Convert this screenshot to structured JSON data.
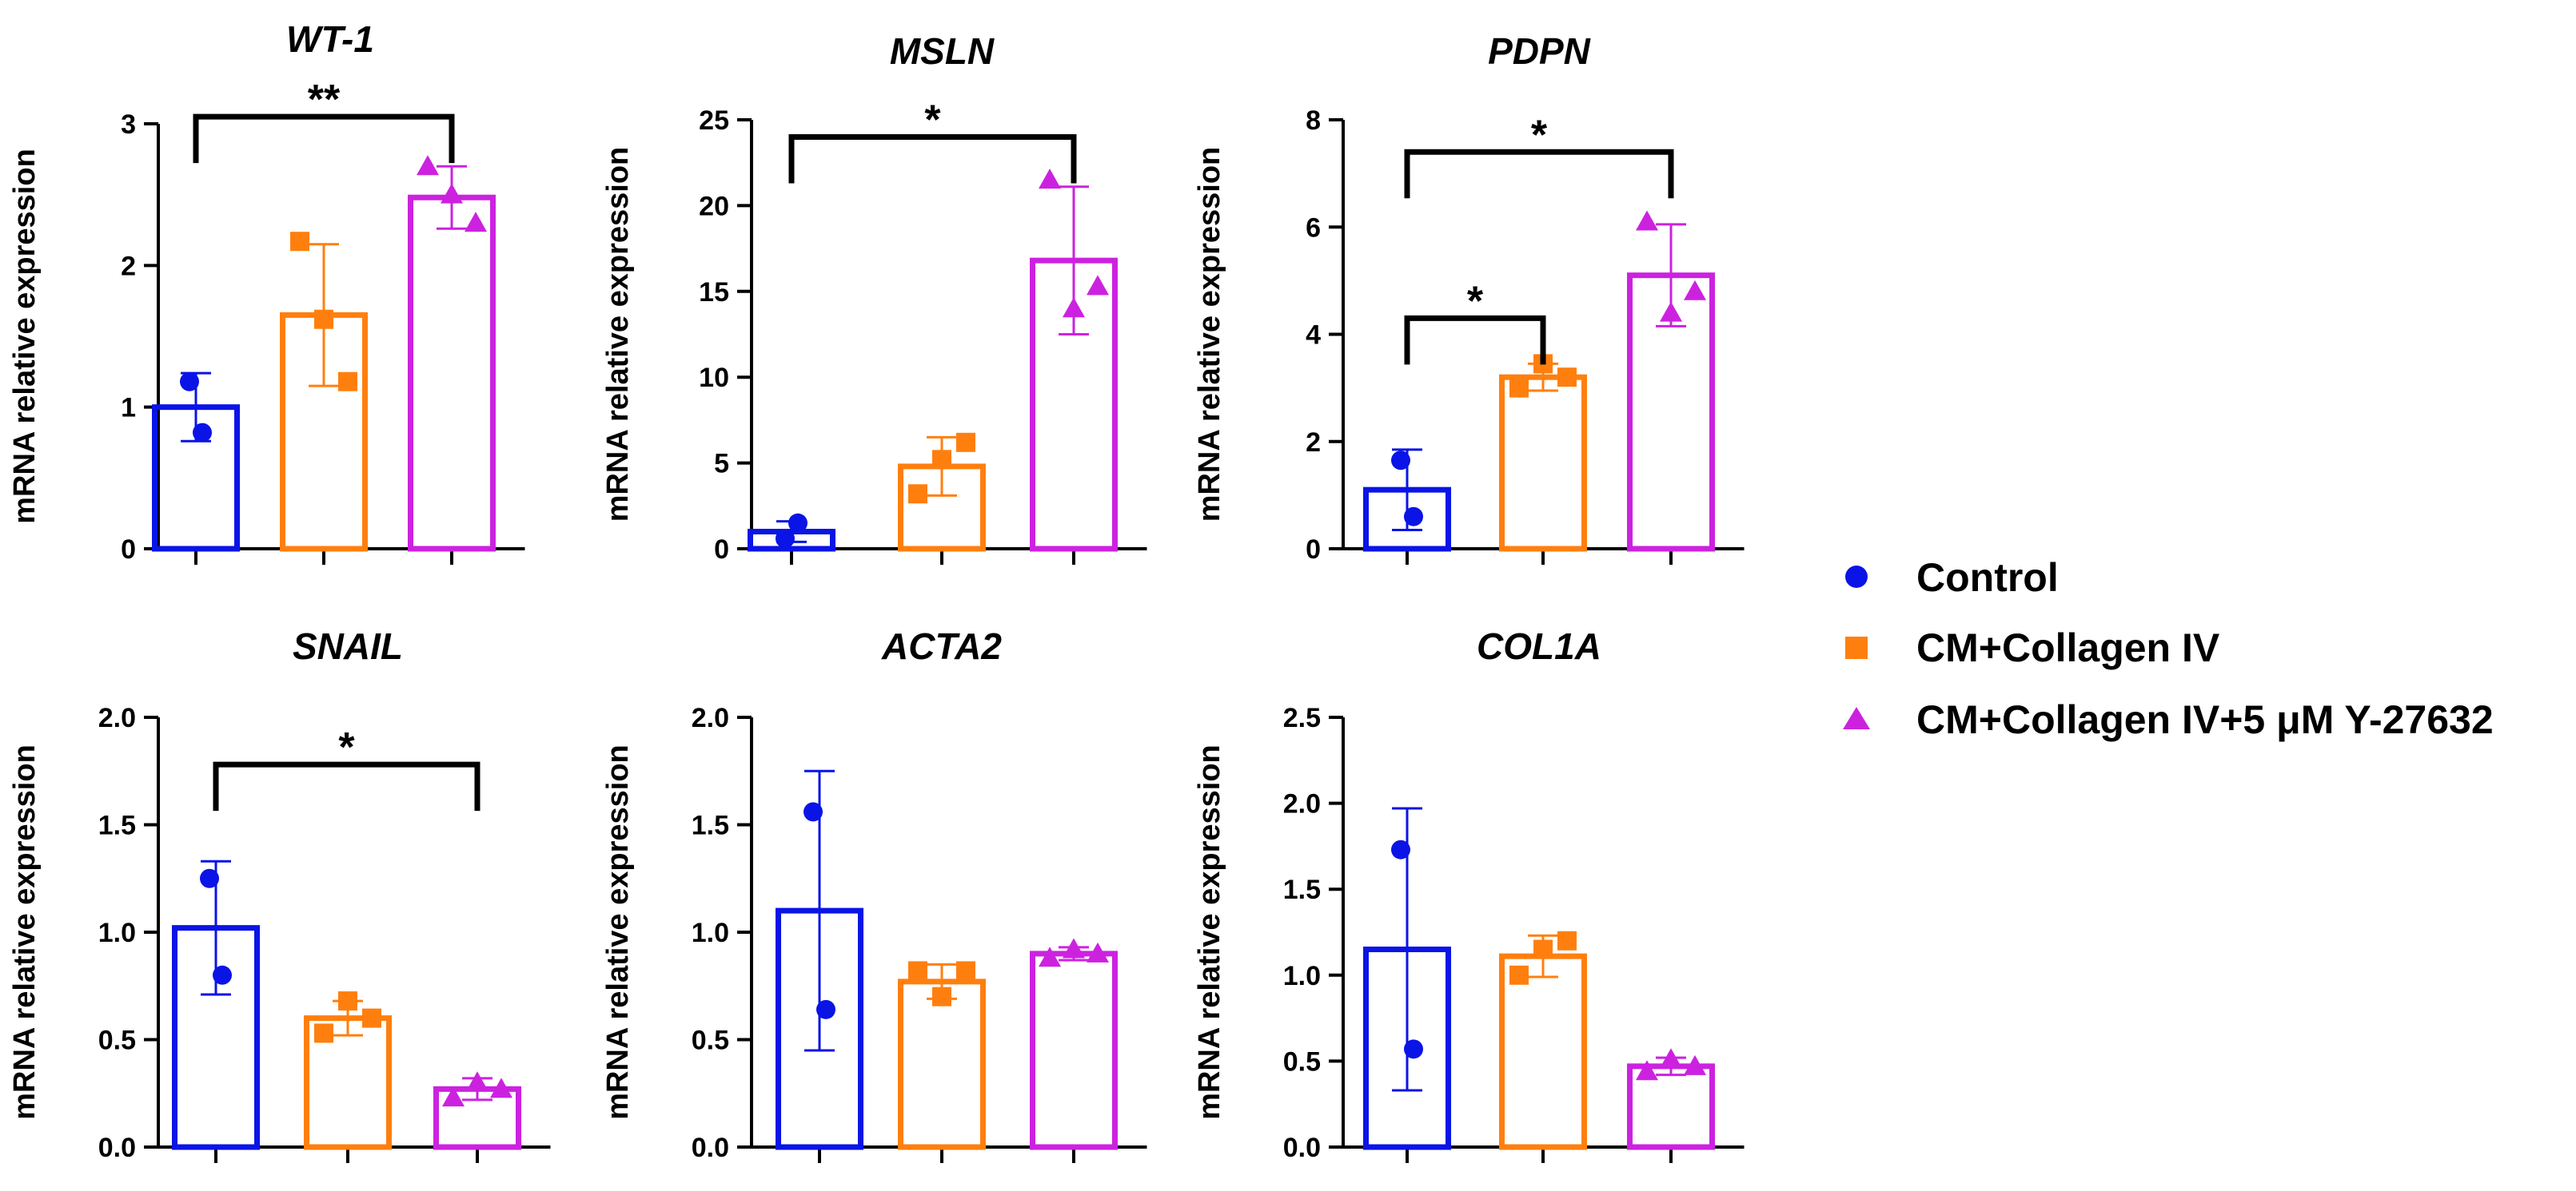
{
  "groups": [
    {
      "name": "Control",
      "color": "#0a14e6",
      "marker": "circle"
    },
    {
      "name": "CM+Collagen IV",
      "color": "#ff7f0e",
      "marker": "square"
    },
    {
      "name": "CM+Collagen IV+5 μM Y-27632",
      "color": "#cc22e0",
      "marker": "triangle"
    }
  ],
  "chart_data": [
    {
      "type": "bar",
      "title": "WT-1",
      "ylabel": "mRNA relative expression",
      "ylim": [
        0,
        3
      ],
      "yticks": [
        "0",
        "1",
        "2",
        "3"
      ],
      "ytick_values": [
        0,
        1,
        2,
        3
      ],
      "series": [
        {
          "name": "Control",
          "mean": 1.0,
          "sd": 0.24,
          "points": [
            1.18,
            0.82
          ]
        },
        {
          "name": "CM+Collagen IV",
          "mean": 1.65,
          "sd": 0.5,
          "points": [
            2.17,
            1.62,
            1.18
          ]
        },
        {
          "name": "CM+Collagen IV+5 μM Y-27632",
          "mean": 2.48,
          "sd": 0.22,
          "points": [
            2.7,
            2.5,
            2.3
          ]
        }
      ],
      "significance": [
        {
          "from": 0,
          "to": 2,
          "label": "**",
          "y": 3.05
        }
      ]
    },
    {
      "type": "bar",
      "title": "MSLN",
      "ylabel": "mRNA relative expression",
      "ylim": [
        0,
        25
      ],
      "yticks": [
        "0",
        "5",
        "10",
        "15",
        "20",
        "25"
      ],
      "ytick_values": [
        0,
        5,
        10,
        15,
        20,
        25
      ],
      "series": [
        {
          "name": "Control",
          "mean": 1.0,
          "sd": 0.6,
          "points": [
            0.6,
            1.5
          ]
        },
        {
          "name": "CM+Collagen IV",
          "mean": 4.8,
          "sd": 1.7,
          "points": [
            3.2,
            5.2,
            6.2
          ]
        },
        {
          "name": "CM+Collagen IV+5 μM Y-27632",
          "mean": 16.8,
          "sd": 4.3,
          "points": [
            21.5,
            14.0,
            15.3
          ]
        }
      ],
      "significance": [
        {
          "from": 0,
          "to": 2,
          "label": "*",
          "y": 24.0
        }
      ]
    },
    {
      "type": "bar",
      "title": "PDPN",
      "ylabel": "mRNA relative expression",
      "ylim": [
        0,
        8
      ],
      "yticks": [
        "0",
        "2",
        "4",
        "6",
        "8"
      ],
      "ytick_values": [
        0,
        2,
        4,
        6,
        8
      ],
      "series": [
        {
          "name": "Control",
          "mean": 1.1,
          "sd": 0.75,
          "points": [
            1.65,
            0.6
          ]
        },
        {
          "name": "CM+Collagen IV",
          "mean": 3.2,
          "sd": 0.25,
          "points": [
            3.0,
            3.45,
            3.2
          ]
        },
        {
          "name": "CM+Collagen IV+5 μM Y-27632",
          "mean": 5.1,
          "sd": 0.95,
          "points": [
            6.1,
            4.4,
            4.8
          ]
        }
      ],
      "significance": [
        {
          "from": 0,
          "to": 1,
          "label": "*",
          "y": 4.3
        },
        {
          "from": 0,
          "to": 2,
          "label": "*",
          "y": 7.4
        }
      ]
    },
    {
      "type": "bar",
      "title": "SNAIL",
      "ylabel": "mRNA relative expression",
      "ylim": [
        0,
        2.0
      ],
      "yticks": [
        "0.0",
        "0.5",
        "1.0",
        "1.5",
        "2.0"
      ],
      "ytick_values": [
        0,
        0.5,
        1.0,
        1.5,
        2.0
      ],
      "series": [
        {
          "name": "Control",
          "mean": 1.02,
          "sd": 0.31,
          "points": [
            1.25,
            0.8
          ]
        },
        {
          "name": "CM+Collagen IV",
          "mean": 0.6,
          "sd": 0.08,
          "points": [
            0.53,
            0.68,
            0.6
          ]
        },
        {
          "name": "CM+Collagen IV+5 μM Y-27632",
          "mean": 0.27,
          "sd": 0.05,
          "points": [
            0.23,
            0.3,
            0.27
          ]
        }
      ],
      "significance": [
        {
          "from": 0,
          "to": 2,
          "label": "*",
          "y": 1.78
        }
      ]
    },
    {
      "type": "bar",
      "title": "ACTA2",
      "ylabel": "mRNA relative expression",
      "ylim": [
        0,
        2.0
      ],
      "yticks": [
        "0.0",
        "0.5",
        "1.0",
        "1.5",
        "2.0"
      ],
      "ytick_values": [
        0,
        0.5,
        1.0,
        1.5,
        2.0
      ],
      "series": [
        {
          "name": "Control",
          "mean": 1.1,
          "sd": 0.65,
          "points": [
            1.56,
            0.64
          ]
        },
        {
          "name": "CM+Collagen IV",
          "mean": 0.77,
          "sd": 0.08,
          "points": [
            0.82,
            0.7,
            0.82
          ]
        },
        {
          "name": "CM+Collagen IV+5 μM Y-27632",
          "mean": 0.9,
          "sd": 0.03,
          "points": [
            0.88,
            0.92,
            0.9
          ]
        }
      ],
      "significance": []
    },
    {
      "type": "bar",
      "title": "COL1A",
      "ylabel": "mRNA relative expression",
      "ylim": [
        0,
        2.5
      ],
      "yticks": [
        "0.0",
        "0.5",
        "1.0",
        "1.5",
        "2.0",
        "2.5"
      ],
      "ytick_values": [
        0,
        0.5,
        1.0,
        1.5,
        2.0,
        2.5
      ],
      "series": [
        {
          "name": "Control",
          "mean": 1.15,
          "sd": 0.82,
          "points": [
            1.73,
            0.57
          ]
        },
        {
          "name": "CM+Collagen IV",
          "mean": 1.11,
          "sd": 0.12,
          "points": [
            1.0,
            1.15,
            1.2
          ]
        },
        {
          "name": "CM+Collagen IV+5 μM Y-27632",
          "mean": 0.47,
          "sd": 0.05,
          "points": [
            0.44,
            0.51,
            0.47
          ]
        }
      ],
      "significance": []
    }
  ]
}
